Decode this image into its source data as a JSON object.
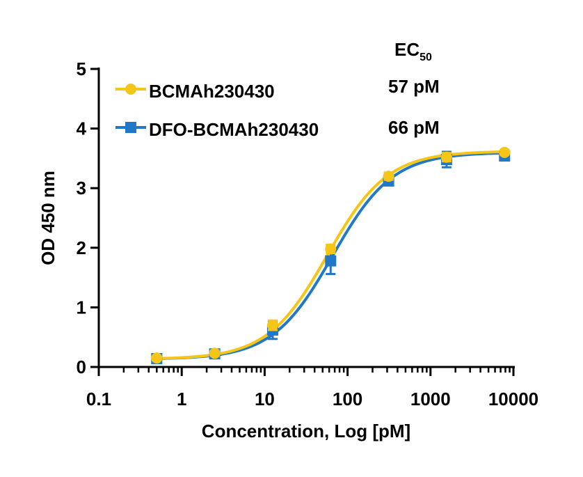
{
  "chart_data": {
    "type": "line",
    "xlabel": "Concentration, Log [pM]",
    "ylabel": "OD 450 nm",
    "xscale": "log",
    "xlim": [
      0.1,
      10000
    ],
    "ylim": [
      0,
      5
    ],
    "xticks": [
      "0.1",
      "1",
      "10",
      "100",
      "1000",
      "10000"
    ],
    "yticks": [
      "0",
      "1",
      "2",
      "3",
      "4",
      "5"
    ],
    "grid": false,
    "legend_position": "top-left",
    "ec50_header_main": "EC",
    "ec50_header_sub": "50",
    "series": [
      {
        "name": "BCMAh230430",
        "color": "#F5C518",
        "marker": "circle",
        "ec50_label": "57 pM",
        "fit": {
          "bottom": 0.13,
          "top": 3.62,
          "ec50": 57,
          "hill": 1.2
        },
        "points": [
          {
            "x": 0.5,
            "y": 0.15,
            "err": 0.04
          },
          {
            "x": 2.5,
            "y": 0.23,
            "err": 0.04
          },
          {
            "x": 12.5,
            "y": 0.7,
            "err": 0.08
          },
          {
            "x": 62.5,
            "y": 1.98,
            "err": 0.07
          },
          {
            "x": 312.5,
            "y": 3.2,
            "err": 0.06
          },
          {
            "x": 1562.5,
            "y": 3.52,
            "err": 0.07
          },
          {
            "x": 7812.5,
            "y": 3.6,
            "err": 0.04
          }
        ]
      },
      {
        "name": "DFO-BCMAh230430",
        "color": "#1F78C8",
        "marker": "square",
        "ec50_label": "66 pM",
        "fit": {
          "bottom": 0.13,
          "top": 3.6,
          "ec50": 66,
          "hill": 1.2
        },
        "points": [
          {
            "x": 0.5,
            "y": 0.14,
            "err": 0.05
          },
          {
            "x": 2.5,
            "y": 0.22,
            "err": 0.05
          },
          {
            "x": 12.5,
            "y": 0.62,
            "err": 0.15
          },
          {
            "x": 62.5,
            "y": 1.78,
            "err": 0.22
          },
          {
            "x": 312.5,
            "y": 3.12,
            "err": 0.07
          },
          {
            "x": 1562.5,
            "y": 3.48,
            "err": 0.13
          },
          {
            "x": 7812.5,
            "y": 3.54,
            "err": 0.05
          }
        ]
      }
    ]
  }
}
